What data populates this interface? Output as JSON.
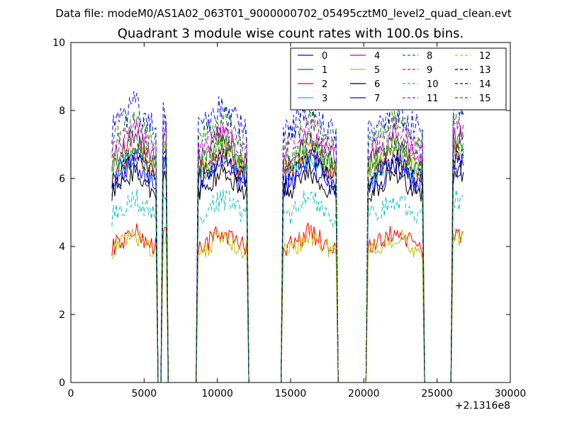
{
  "figure": {
    "suptitle": "Data file: modeM0/AS1A02_063T01_9000000702_05495cztM0_level2_quad_clean.evt",
    "title": "Quadrant 3 module wise count rates with 100.0s bins.",
    "x_offset_label": "+2.1316e8"
  },
  "chart_data": {
    "type": "line",
    "title": "Quadrant 3 module wise count rates with 100.0s bins.",
    "xlabel": "",
    "ylabel": "",
    "xlim": [
      0,
      30000
    ],
    "ylim": [
      0,
      10
    ],
    "x_ticks": [
      0,
      5000,
      10000,
      15000,
      20000,
      25000,
      30000
    ],
    "y_ticks": [
      0,
      2,
      4,
      6,
      8,
      10
    ],
    "grid": false,
    "legend": {
      "placement": "top-right",
      "columns": 4
    },
    "x_offset": 213160000,
    "segments": [
      {
        "x_start": 2800,
        "x_end": 5800
      },
      {
        "x_start": 6300,
        "x_end": 6500
      },
      {
        "x_start": 8700,
        "x_end": 12000
      },
      {
        "x_start": 14500,
        "x_end": 18100
      },
      {
        "x_start": 20300,
        "x_end": 24000
      },
      {
        "x_start": 26100,
        "x_end": 26800
      }
    ],
    "series": [
      {
        "name": "0",
        "color": "#0000ff",
        "style": "solid",
        "level": 5.8,
        "amp": 0.35
      },
      {
        "name": "1",
        "color": "#008000",
        "style": "solid",
        "level": 6.4,
        "amp": 0.35
      },
      {
        "name": "2",
        "color": "#ff0000",
        "style": "solid",
        "level": 4.0,
        "amp": 0.3
      },
      {
        "name": "3",
        "color": "#00bfbf",
        "style": "solid",
        "level": 6.1,
        "amp": 0.35
      },
      {
        "name": "4",
        "color": "#bf00bf",
        "style": "solid",
        "level": 6.6,
        "amp": 0.35
      },
      {
        "name": "5",
        "color": "#bfbf00",
        "style": "solid",
        "level": 3.9,
        "amp": 0.3
      },
      {
        "name": "6",
        "color": "#000000",
        "style": "solid",
        "level": 5.6,
        "amp": 0.3
      },
      {
        "name": "7",
        "color": "#0000ff",
        "style": "solid",
        "level": 6.0,
        "amp": 0.35
      },
      {
        "name": "8",
        "color": "#008000",
        "style": "dashed",
        "level": 7.1,
        "amp": 0.4
      },
      {
        "name": "9",
        "color": "#ff0000",
        "style": "dashed",
        "level": 6.2,
        "amp": 0.35
      },
      {
        "name": "10",
        "color": "#00bfbf",
        "style": "dashed",
        "level": 4.9,
        "amp": 0.35
      },
      {
        "name": "11",
        "color": "#bf00bf",
        "style": "dashed",
        "level": 6.9,
        "amp": 0.35
      },
      {
        "name": "12",
        "color": "#bfbf00",
        "style": "dashed",
        "level": 6.3,
        "amp": 0.35
      },
      {
        "name": "13",
        "color": "#000000",
        "style": "dashed",
        "level": 6.0,
        "amp": 0.3
      },
      {
        "name": "14",
        "color": "#0000ff",
        "style": "dashed",
        "level": 7.4,
        "amp": 0.45
      },
      {
        "name": "15",
        "color": "#008000",
        "style": "dashed",
        "level": 6.5,
        "amp": 0.35
      }
    ]
  }
}
